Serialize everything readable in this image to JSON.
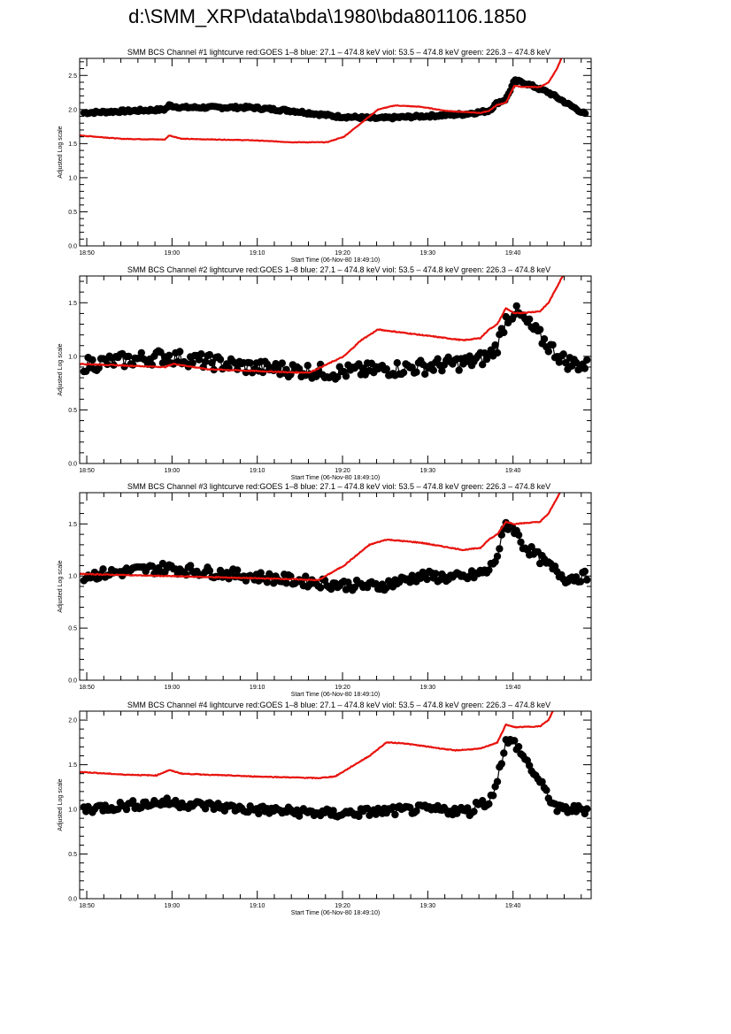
{
  "title": "d:\\SMM_XRP\\data\\bda\\1980\\bda801106.1850",
  "colors": {
    "goes": "#e8120c",
    "bcs": "#000000"
  },
  "chart_data": [
    {
      "type": "line",
      "title": "SMM BCS Channel #1 lightcurve  red:GOES 1–8  blue: 27.1 – 474.8 keV  viol: 53.5 – 474.8 keV  green: 226.3 – 474.8 keV",
      "xlabel": "Start Time (06-Nov-80 18:49:10)",
      "ylabel": "Adjusted Log scale",
      "x_unit": "minutes since 18:49:10",
      "xlim": [
        0,
        60
      ],
      "ylim": [
        0,
        2.75
      ],
      "yticks": [
        "0.0",
        "0.5",
        "1.0",
        "1.5",
        "2.0",
        "2.5"
      ],
      "xticks": [
        "18:50",
        "19:00",
        "19:10",
        "19:20",
        "19:30",
        "19:40"
      ],
      "series": [
        {
          "name": "GOES 1-8",
          "color": "red",
          "x": [
            0,
            5,
            10,
            10.5,
            12,
            20,
            25,
            29,
            31,
            33,
            35,
            37,
            40,
            43,
            47,
            48,
            49,
            50,
            51,
            52,
            54,
            55,
            56,
            57
          ],
          "y": [
            1.62,
            1.57,
            1.56,
            1.62,
            1.57,
            1.55,
            1.52,
            1.52,
            1.6,
            1.8,
            2.0,
            2.06,
            2.04,
            1.98,
            1.95,
            1.98,
            2.07,
            2.1,
            2.35,
            2.33,
            2.33,
            2.4,
            2.6,
            2.9
          ]
        },
        {
          "name": "BCS channel 1",
          "color": "black",
          "x": [
            0,
            10,
            10.5,
            12,
            20,
            25,
            30,
            35,
            40,
            45,
            48,
            49,
            50,
            51,
            52,
            55,
            60
          ],
          "y": [
            1.95,
            2.0,
            2.06,
            2.03,
            2.03,
            1.98,
            1.9,
            1.87,
            1.9,
            1.93,
            1.98,
            2.1,
            2.15,
            2.42,
            2.4,
            2.25,
            1.88
          ],
          "noise": 0.02
        }
      ]
    },
    {
      "type": "line",
      "title": "SMM BCS Channel #2 lightcurve  red:GOES 1–8  blue: 27.1 – 474.8 keV  viol: 53.5 – 474.8 keV  green: 226.3 – 474.8 keV",
      "xlabel": "Start Time (06-Nov-80 18:49:10)",
      "ylabel": "Adjusted Log scale",
      "x_unit": "minutes since 18:49:10",
      "xlim": [
        0,
        60
      ],
      "ylim": [
        0,
        1.75
      ],
      "yticks": [
        "0.0",
        "0.5",
        "1.0",
        "1.5"
      ],
      "xticks": [
        "18:50",
        "19:00",
        "19:10",
        "19:20",
        "19:30",
        "19:40"
      ],
      "series": [
        {
          "name": "GOES 1-8",
          "color": "red",
          "x": [
            0,
            10,
            11,
            15,
            25,
            27,
            31,
            33,
            35,
            38,
            45,
            47,
            48,
            49,
            50,
            51,
            54,
            55,
            57
          ],
          "y": [
            0.93,
            0.9,
            0.93,
            0.88,
            0.85,
            0.85,
            1.0,
            1.15,
            1.25,
            1.22,
            1.15,
            1.17,
            1.25,
            1.3,
            1.45,
            1.4,
            1.42,
            1.5,
            1.8
          ]
        },
        {
          "name": "BCS channel 2",
          "color": "black",
          "x": [
            0,
            10,
            20,
            30,
            40,
            46,
            48,
            49,
            50,
            51,
            52,
            55,
            57,
            60
          ],
          "y": [
            0.92,
            1.0,
            0.9,
            0.85,
            0.9,
            0.95,
            1.0,
            1.1,
            1.35,
            1.42,
            1.35,
            1.1,
            0.95,
            0.9
          ],
          "noise": 0.07
        }
      ]
    },
    {
      "type": "line",
      "title": "SMM BCS Channel #3 lightcurve  red:GOES 1–8  blue: 27.1 – 474.8 keV  viol: 53.5 – 474.8 keV  green: 226.3 – 474.8 keV",
      "xlabel": "Start Time (06-Nov-80 18:49:10)",
      "ylabel": "Adjusted Log scale",
      "x_unit": "minutes since 18:49:10",
      "xlim": [
        0,
        60
      ],
      "ylim": [
        0,
        1.8
      ],
      "yticks": [
        "0.0",
        "0.5",
        "1.0",
        "1.5"
      ],
      "xticks": [
        "18:50",
        "19:00",
        "19:10",
        "19:20",
        "19:30",
        "19:40"
      ],
      "series": [
        {
          "name": "GOES 1-8",
          "color": "red",
          "x": [
            0,
            10,
            25,
            28,
            31,
            34,
            36,
            40,
            45,
            47,
            48,
            49,
            50,
            51,
            54,
            55,
            57
          ],
          "y": [
            1.02,
            1.0,
            0.97,
            0.96,
            1.1,
            1.3,
            1.35,
            1.32,
            1.25,
            1.27,
            1.35,
            1.4,
            1.52,
            1.5,
            1.52,
            1.6,
            1.9
          ]
        },
        {
          "name": "BCS channel 3",
          "color": "black",
          "x": [
            0,
            10,
            20,
            30,
            35,
            40,
            45,
            48,
            49,
            50,
            51,
            52,
            55,
            57,
            60
          ],
          "y": [
            1.0,
            1.08,
            1.0,
            0.92,
            0.9,
            1.0,
            0.98,
            1.05,
            1.2,
            1.5,
            1.45,
            1.3,
            1.1,
            0.98,
            1.0
          ],
          "noise": 0.05
        }
      ]
    },
    {
      "type": "line",
      "title": "SMM BCS Channel #4 lightcurve  red:GOES 1–8  blue: 27.1 – 474.8 keV  viol: 53.5 – 474.8 keV  green: 226.3 – 474.8 keV",
      "xlabel": "Start Time (06-Nov-80 18:49:10)",
      "ylabel": "Adjusted Log scale",
      "x_unit": "minutes since 18:49:10",
      "xlim": [
        0,
        60
      ],
      "ylim": [
        0,
        2.1
      ],
      "yticks": [
        "0.0",
        "0.5",
        "1.0",
        "1.5",
        "2.0"
      ],
      "xticks": [
        "18:50",
        "19:00",
        "19:10",
        "19:20",
        "19:30",
        "19:40"
      ],
      "series": [
        {
          "name": "GOES 1-8",
          "color": "red",
          "x": [
            0,
            5,
            9,
            10.5,
            12,
            20,
            28,
            30,
            34,
            36,
            38,
            44,
            47,
            49,
            50,
            51,
            54,
            55,
            56
          ],
          "y": [
            1.42,
            1.39,
            1.38,
            1.44,
            1.4,
            1.37,
            1.35,
            1.37,
            1.6,
            1.75,
            1.74,
            1.66,
            1.68,
            1.75,
            1.95,
            1.92,
            1.93,
            2.0,
            2.2
          ]
        },
        {
          "name": "BCS channel 4",
          "color": "black",
          "x": [
            0,
            10,
            20,
            30,
            40,
            46,
            47,
            48,
            49,
            50,
            51,
            52,
            54,
            56,
            60
          ],
          "y": [
            1.0,
            1.08,
            1.0,
            0.95,
            1.0,
            0.98,
            1.1,
            1.05,
            1.35,
            1.75,
            1.75,
            1.6,
            1.3,
            1.0,
            1.0
          ],
          "noise": 0.05
        }
      ]
    }
  ]
}
